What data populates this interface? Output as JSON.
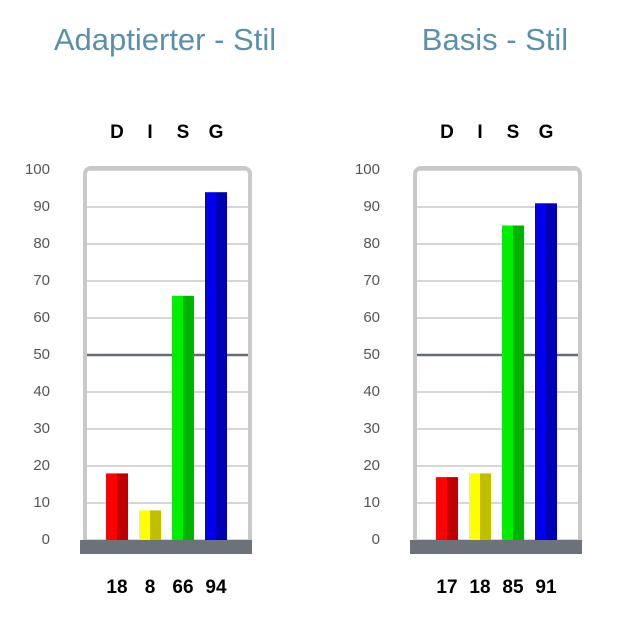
{
  "chart_data": [
    {
      "type": "bar",
      "title": "Adaptierter - Stil",
      "categories": [
        "D",
        "I",
        "S",
        "G"
      ],
      "values": [
        18,
        8,
        66,
        94
      ],
      "colors": [
        "#ff0000",
        "#ffff00",
        "#00ee00",
        "#0000ee"
      ],
      "ylim": [
        0,
        100
      ],
      "yticks": [
        0,
        10,
        20,
        30,
        40,
        50,
        60,
        70,
        80,
        90,
        100
      ],
      "grid": true,
      "reference_line": 50
    },
    {
      "type": "bar",
      "title": "Basis - Stil",
      "categories": [
        "D",
        "I",
        "S",
        "G"
      ],
      "values": [
        17,
        18,
        85,
        91
      ],
      "colors": [
        "#ff0000",
        "#ffff00",
        "#00ee00",
        "#0000ee"
      ],
      "ylim": [
        0,
        100
      ],
      "yticks": [
        0,
        10,
        20,
        30,
        40,
        50,
        60,
        70,
        80,
        90,
        100
      ],
      "grid": true,
      "reference_line": 50
    }
  ]
}
